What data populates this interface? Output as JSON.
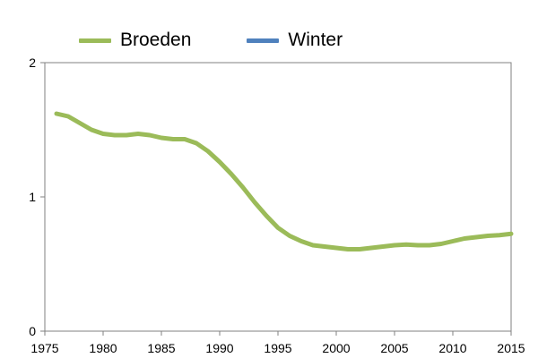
{
  "chart_data": {
    "type": "line",
    "xlim": [
      1975,
      2015
    ],
    "ylim": [
      0,
      2
    ],
    "x_ticks": [
      "1975",
      "1980",
      "1985",
      "1990",
      "1995",
      "2000",
      "2005",
      "2010",
      "2015"
    ],
    "y_ticks": [
      "0",
      "1",
      "2"
    ],
    "grid": false,
    "legend_position": "top",
    "series": [
      {
        "name": "Broeden",
        "color": "#9bbb59",
        "x": [
          1976,
          1977,
          1978,
          1979,
          1980,
          1981,
          1982,
          1983,
          1984,
          1985,
          1986,
          1987,
          1988,
          1989,
          1990,
          1991,
          1992,
          1993,
          1994,
          1995,
          1996,
          1997,
          1998,
          1999,
          2000,
          2001,
          2002,
          2003,
          2004,
          2005,
          2006,
          2007,
          2008,
          2009,
          2010,
          2011,
          2012,
          2013,
          2014,
          2015
        ],
        "values": [
          1.62,
          1.6,
          1.55,
          1.5,
          1.47,
          1.46,
          1.46,
          1.47,
          1.46,
          1.44,
          1.43,
          1.43,
          1.4,
          1.34,
          1.26,
          1.17,
          1.07,
          0.96,
          0.86,
          0.77,
          0.71,
          0.67,
          0.64,
          0.63,
          0.62,
          0.61,
          0.61,
          0.62,
          0.63,
          0.64,
          0.645,
          0.64,
          0.64,
          0.65,
          0.67,
          0.69,
          0.7,
          0.71,
          0.715,
          0.725
        ]
      },
      {
        "name": "Winter",
        "color": "#4f81bd",
        "x": [],
        "values": []
      }
    ]
  }
}
